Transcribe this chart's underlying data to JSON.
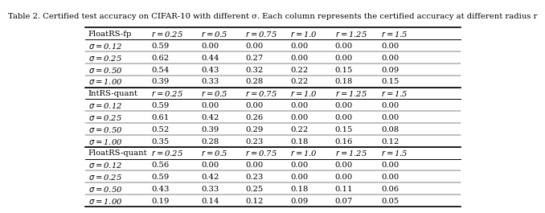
{
  "title": "Table 2. Certified test accuracy on CIFAR-10 with different σ. Each column represents the certified accuracy at different radius r",
  "sections": [
    {
      "header": "FloatRS-fp",
      "rows": [
        [
          "σ = 0.12",
          "0.59",
          "0.00",
          "0.00",
          "0.00",
          "0.00",
          "0.00"
        ],
        [
          "σ = 0.25",
          "0.62",
          "0.44",
          "0.27",
          "0.00",
          "0.00",
          "0.00"
        ],
        [
          "σ = 0.50",
          "0.54",
          "0.43",
          "0.32",
          "0.22",
          "0.15",
          "0.09"
        ],
        [
          "σ = 1.00",
          "0.39",
          "0.33",
          "0.28",
          "0.22",
          "0.18",
          "0.15"
        ]
      ]
    },
    {
      "header": "IntRS-quant",
      "rows": [
        [
          "σ = 0.12",
          "0.59",
          "0.00",
          "0.00",
          "0.00",
          "0.00",
          "0.00"
        ],
        [
          "σ = 0.25",
          "0.61",
          "0.42",
          "0.26",
          "0.00",
          "0.00",
          "0.00"
        ],
        [
          "σ = 0.50",
          "0.52",
          "0.39",
          "0.29",
          "0.22",
          "0.15",
          "0.08"
        ],
        [
          "σ = 1.00",
          "0.35",
          "0.28",
          "0.23",
          "0.18",
          "0.16",
          "0.12"
        ]
      ]
    },
    {
      "header": "FloatRS-quant",
      "rows": [
        [
          "σ = 0.12",
          "0.56",
          "0.00",
          "0.00",
          "0.00",
          "0.00",
          "0.00"
        ],
        [
          "σ = 0.25",
          "0.59",
          "0.42",
          "0.23",
          "0.00",
          "0.00",
          "0.00"
        ],
        [
          "σ = 0.50",
          "0.43",
          "0.33",
          "0.25",
          "0.18",
          "0.11",
          "0.06"
        ],
        [
          "σ = 1.00",
          "0.19",
          "0.14",
          "0.12",
          "0.09",
          "0.07",
          "0.05"
        ]
      ]
    }
  ],
  "col_headers": [
    "r = 0.25",
    "r = 0.5",
    "r = 0.75",
    "r = 1.0",
    "r = 1.25",
    "r = 1.5"
  ],
  "bg_color": "#ffffff",
  "text_color": "#000000",
  "title_fontsize": 7.2,
  "cell_fontsize": 7.2
}
